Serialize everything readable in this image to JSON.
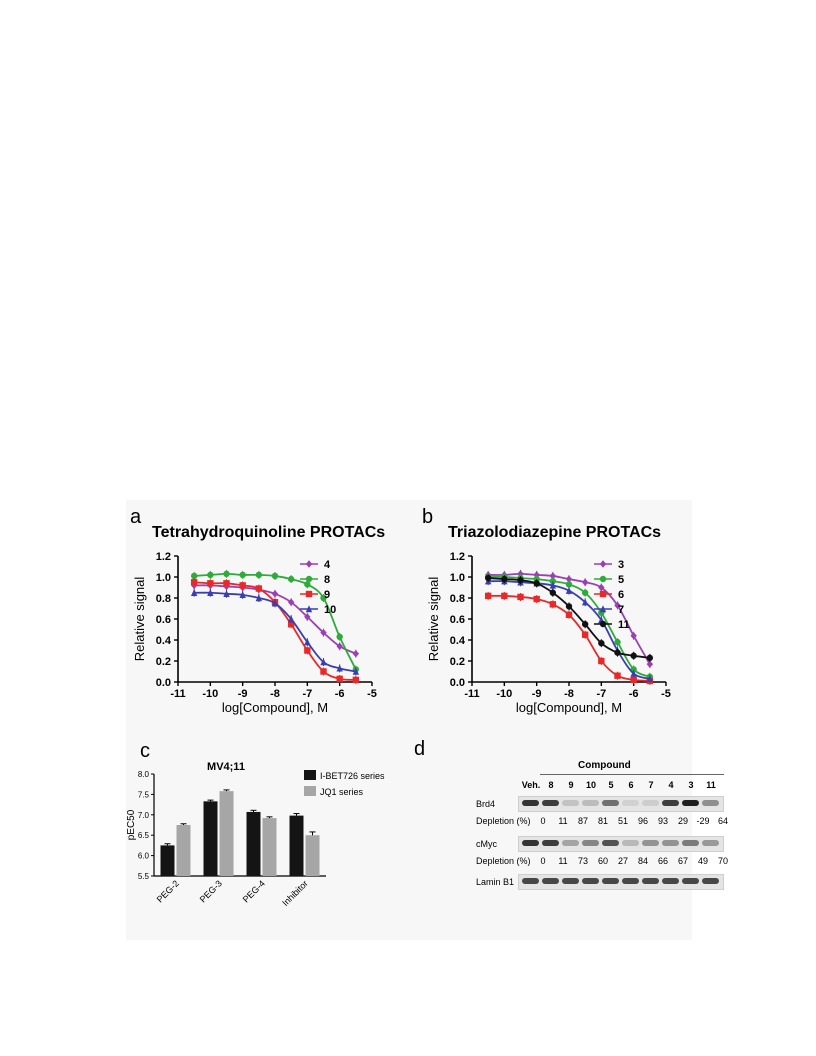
{
  "panel_labels": [
    "a",
    "b",
    "c",
    "d"
  ],
  "chart_data": [
    {
      "type": "line",
      "panel": "a",
      "title": "Tetrahydroquinoline PROTACs",
      "xlabel": "log[Compound], M",
      "ylabel": "Relative signal",
      "xlim": [
        -11,
        -5
      ],
      "ylim": [
        0.0,
        1.2
      ],
      "x_ticks": [
        "-11",
        "-10",
        "-9",
        "-8",
        "-7",
        "-6",
        "-5"
      ],
      "y_ticks": [
        "0.0",
        "0.2",
        "0.4",
        "0.6",
        "0.8",
        "1.0",
        "1.2"
      ],
      "legend_position": "top-right",
      "x": [
        -10.5,
        -10.0,
        -9.5,
        -9.0,
        -8.5,
        -8.0,
        -7.5,
        -7.0,
        -6.5,
        -6.0,
        -5.5
      ],
      "series": [
        {
          "name": "4",
          "color": "#9b3fb5",
          "marker": "diamond",
          "values": [
            0.92,
            0.92,
            0.91,
            0.9,
            0.88,
            0.84,
            0.76,
            0.62,
            0.47,
            0.34,
            0.27
          ]
        },
        {
          "name": "8",
          "color": "#2eab3a",
          "marker": "circle",
          "values": [
            1.01,
            1.02,
            1.03,
            1.02,
            1.02,
            1.01,
            0.98,
            0.93,
            0.8,
            0.43,
            0.12
          ]
        },
        {
          "name": "9",
          "color": "#e8292a",
          "marker": "square",
          "values": [
            0.95,
            0.94,
            0.94,
            0.92,
            0.89,
            0.76,
            0.55,
            0.3,
            0.1,
            0.03,
            0.02
          ]
        },
        {
          "name": "10",
          "color": "#3a3fb0",
          "marker": "triangle",
          "values": [
            0.85,
            0.85,
            0.84,
            0.83,
            0.8,
            0.75,
            0.6,
            0.38,
            0.19,
            0.13,
            0.1
          ]
        }
      ]
    },
    {
      "type": "line",
      "panel": "b",
      "title": "Triazolodiazepine PROTACs",
      "xlabel": "log[Compound], M",
      "ylabel": "Relative signal",
      "xlim": [
        -11,
        -5
      ],
      "ylim": [
        0.0,
        1.2
      ],
      "x_ticks": [
        "-11",
        "-10",
        "-9",
        "-8",
        "-7",
        "-6",
        "-5"
      ],
      "y_ticks": [
        "0.0",
        "0.2",
        "0.4",
        "0.6",
        "0.8",
        "1.0",
        "1.2"
      ],
      "legend_position": "top-right",
      "x": [
        -10.5,
        -10.0,
        -9.5,
        -9.0,
        -8.5,
        -8.0,
        -7.5,
        -7.0,
        -6.5,
        -6.0,
        -5.5
      ],
      "series": [
        {
          "name": "3",
          "color": "#9b3fb5",
          "marker": "diamond",
          "values": [
            1.02,
            1.02,
            1.03,
            1.02,
            1.01,
            0.98,
            0.95,
            0.9,
            0.73,
            0.44,
            0.17
          ]
        },
        {
          "name": "5",
          "color": "#2eab3a",
          "marker": "circle",
          "values": [
            1.0,
            1.0,
            0.99,
            0.98,
            0.96,
            0.93,
            0.85,
            0.66,
            0.38,
            0.12,
            0.05
          ]
        },
        {
          "name": "6",
          "color": "#e8292a",
          "marker": "square",
          "values": [
            0.82,
            0.82,
            0.81,
            0.79,
            0.74,
            0.64,
            0.45,
            0.2,
            0.06,
            0.02,
            0.01
          ]
        },
        {
          "name": "7",
          "color": "#3a3fb0",
          "marker": "triangle",
          "values": [
            0.96,
            0.96,
            0.95,
            0.94,
            0.92,
            0.87,
            0.76,
            0.59,
            0.3,
            0.08,
            0.03
          ]
        },
        {
          "name": "11",
          "color": "#111111",
          "marker": "circle",
          "values": [
            0.99,
            0.98,
            0.97,
            0.94,
            0.85,
            0.72,
            0.55,
            0.37,
            0.28,
            0.25,
            0.23
          ]
        }
      ]
    },
    {
      "type": "bar",
      "panel": "c",
      "title": "MV4;11",
      "xlabel": "",
      "ylabel": "pEC50",
      "ylim": [
        5.5,
        8.0
      ],
      "y_ticks": [
        "5.5",
        "6.0",
        "6.5",
        "7.0",
        "7.5",
        "8.0"
      ],
      "categories": [
        "PEG-2",
        "PEG-3",
        "PEG-4",
        "Inhibitor"
      ],
      "legend_position": "top-right",
      "series": [
        {
          "name": "I-BET726 series",
          "color": "#141414",
          "values": [
            6.25,
            7.33,
            7.07,
            6.98
          ],
          "errors": [
            0.04,
            0.03,
            0.04,
            0.05
          ]
        },
        {
          "name": "JQ1 series",
          "color": "#a6a6a6",
          "values": [
            6.75,
            7.58,
            6.92,
            6.5
          ],
          "errors": [
            0.03,
            0.03,
            0.03,
            0.08
          ]
        }
      ]
    }
  ],
  "blot": {
    "header": "Compound",
    "lanes": [
      "Veh.",
      "8",
      "9",
      "10",
      "5",
      "6",
      "7",
      "4",
      "3",
      "11"
    ],
    "depletion_label": "Depletion (%)",
    "rows": [
      {
        "label": "Brd4",
        "depletion": [
          "0",
          "11",
          "87",
          "81",
          "51",
          "96",
          "93",
          "29",
          "-29",
          "64"
        ],
        "intensity": [
          0.85,
          0.8,
          0.15,
          0.18,
          0.55,
          0.08,
          0.1,
          0.8,
          0.95,
          0.4
        ]
      },
      {
        "label": "cMyc",
        "depletion": [
          "0",
          "11",
          "73",
          "60",
          "27",
          "84",
          "66",
          "67",
          "49",
          "70"
        ],
        "intensity": [
          0.85,
          0.8,
          0.3,
          0.45,
          0.7,
          0.2,
          0.38,
          0.38,
          0.5,
          0.35
        ]
      },
      {
        "label": "Lamin B1",
        "depletion": null,
        "intensity": [
          0.75,
          0.75,
          0.75,
          0.75,
          0.75,
          0.75,
          0.75,
          0.75,
          0.75,
          0.75
        ]
      }
    ]
  }
}
